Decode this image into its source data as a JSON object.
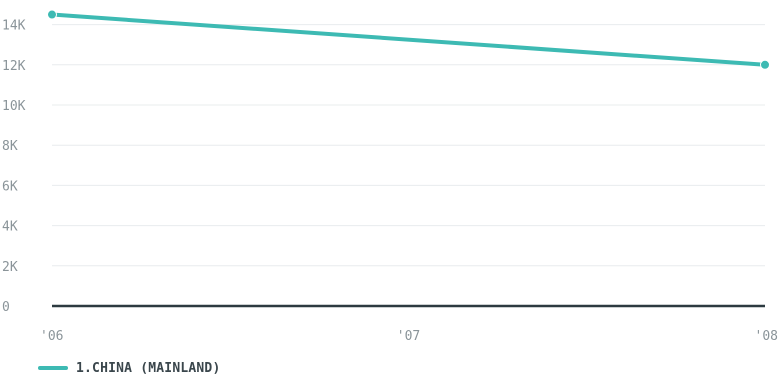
{
  "chart_data": {
    "type": "line",
    "x": [
      "'06",
      "'07",
      "'08"
    ],
    "series": [
      {
        "name": "1.CHINA (MAINLAND)",
        "points": [
          {
            "x": 2006,
            "y": 14500
          },
          {
            "x": 2008,
            "y": 12000
          }
        ],
        "color": "#3dbab3"
      }
    ],
    "y_ticks": [
      "0",
      "2K",
      "4K",
      "6K",
      "8K",
      "10K",
      "12K",
      "14K"
    ],
    "y_tick_values": [
      0,
      2000,
      4000,
      6000,
      8000,
      10000,
      12000,
      14000
    ],
    "x_tick_values": [
      2006,
      2007,
      2008
    ],
    "xlim": [
      2006,
      2008
    ],
    "ylim": [
      0,
      15000
    ],
    "grid": true,
    "legend_position": "bottom-left",
    "colors": {
      "grid": "#e8ecee",
      "baseline": "#2c3a40",
      "tick_text": "#8a9499",
      "legend_text": "#3a464c"
    }
  }
}
